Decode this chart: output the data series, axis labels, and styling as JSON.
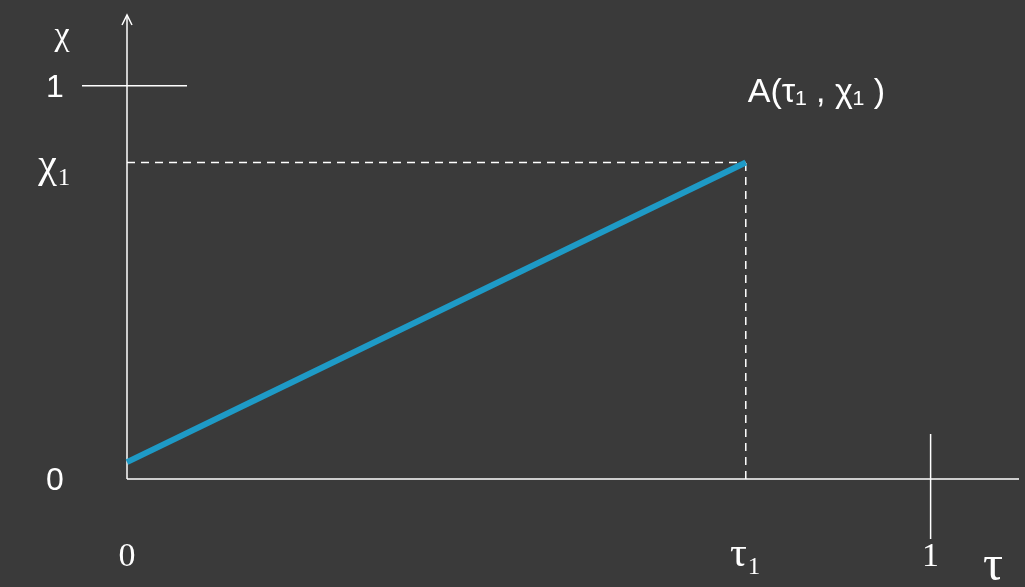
{
  "chart_data": {
    "type": "line",
    "xlabel": "τ",
    "ylabel": "χ",
    "x": [
      0,
      0.77
    ],
    "series": [
      {
        "color": "#1e9ac6",
        "values": [
          0.043,
          0.805
        ]
      }
    ],
    "xlim": [
      0,
      1.11
    ],
    "ylim": [
      0,
      1.18
    ],
    "xticks": [
      0,
      {
        "value": 0.77,
        "label": "τ₁"
      },
      1
    ],
    "yticks": [
      0,
      {
        "value": 0.805,
        "label": "χ₁"
      },
      1
    ],
    "ref_lines": [
      {
        "axis": "x",
        "value": 0.77,
        "label": null,
        "line_style": "dashed",
        "color": "#ffffff"
      },
      {
        "axis": "y",
        "value": 0.805,
        "label": null,
        "line_style": "dashed",
        "color": "#ffffff"
      }
    ],
    "annotations": [
      {
        "text": "A(τ₁ , χ₁ )",
        "x": 0.77,
        "y": 0.805
      }
    ],
    "grid": false,
    "line_style": "solid"
  }
}
